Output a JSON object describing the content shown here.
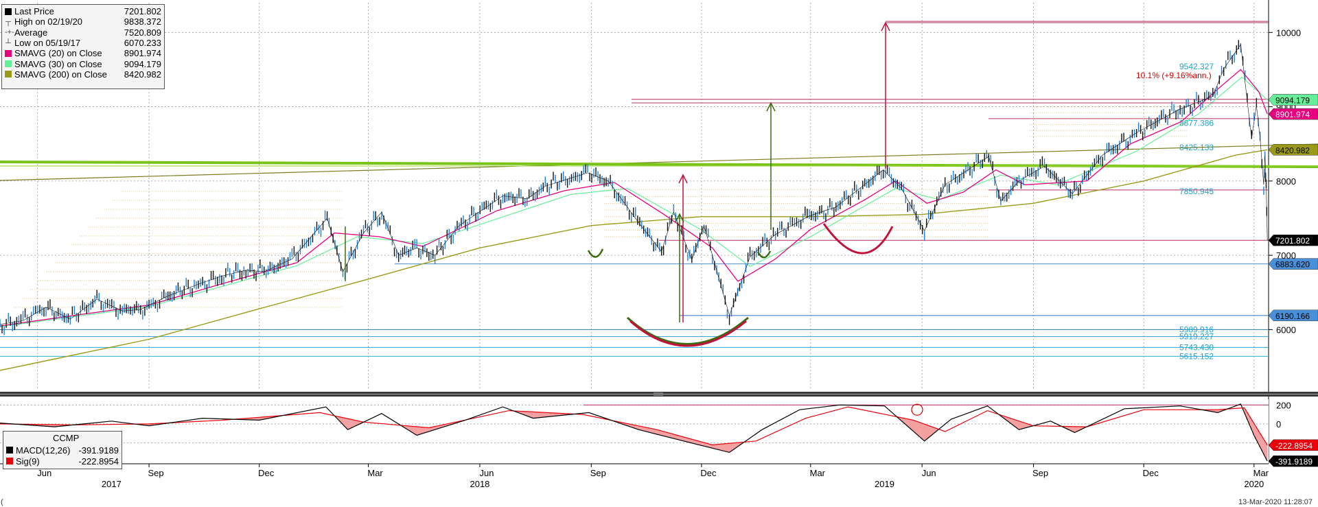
{
  "legend": [
    {
      "label": "Last Price",
      "value": "7201.802",
      "color": "#000000",
      "kind": "box"
    },
    {
      "label": "High on 02/19/20",
      "value": "9838.372",
      "color": "#444444",
      "kind": "high"
    },
    {
      "label": "Average",
      "value": "7520.809",
      "color": "#444444",
      "kind": "avg"
    },
    {
      "label": "Low on 05/19/17",
      "value": "6070.233",
      "color": "#444444",
      "kind": "low"
    },
    {
      "label": "SMAVG (20)  on Close",
      "value": "8901.974",
      "color": "#e6007e",
      "kind": "box"
    },
    {
      "label": "SMAVG (30)  on Close",
      "value": "9094.179",
      "color": "#66ee99",
      "kind": "box"
    },
    {
      "label": "SMAVG (200)  on Close",
      "value": "8420.982",
      "color": "#9a9a1a",
      "kind": "box"
    }
  ],
  "macd_legend": {
    "title": "CCMP",
    "rows": [
      {
        "label": "MACD(12,26)",
        "value": "-391.9189",
        "color": "#000000"
      },
      {
        "label": "Sig(9)",
        "value": "-222.8954",
        "color": "#e8000b"
      }
    ]
  },
  "timestamp": "13-Mar-2020 11:28:07",
  "corner_mark": "(",
  "chart_data": {
    "type": "line",
    "title": "",
    "x_range": [
      "2017-05-01",
      "2020-03-13"
    ],
    "y_range": [
      5200,
      10400
    ],
    "log_scale": false,
    "y_ticks": [
      10000,
      9000,
      8000,
      7000,
      6000
    ],
    "x_ticks_month": [
      {
        "label": "Jun",
        "date": "2017-06-01"
      },
      {
        "label": "Sep",
        "date": "2017-09-01"
      },
      {
        "label": "Dec",
        "date": "2017-12-01"
      },
      {
        "label": "Mar",
        "date": "2018-03-01"
      },
      {
        "label": "Jun",
        "date": "2018-06-01"
      },
      {
        "label": "Sep",
        "date": "2018-09-01"
      },
      {
        "label": "Dec",
        "date": "2018-12-01"
      },
      {
        "label": "Mar",
        "date": "2019-03-01"
      },
      {
        "label": "Jun",
        "date": "2019-06-01"
      },
      {
        "label": "Sep",
        "date": "2019-09-01"
      },
      {
        "label": "Dec",
        "date": "2019-12-01"
      },
      {
        "label": "Mar",
        "date": "2020-03-01"
      }
    ],
    "x_ticks_year": [
      {
        "label": "2017",
        "date": "2017-08-01"
      },
      {
        "label": "2018",
        "date": "2018-06-01"
      },
      {
        "label": "2019",
        "date": "2019-05-01"
      },
      {
        "label": "2020",
        "date": "2020-03-01"
      }
    ],
    "price_series": {
      "name": "Last Price",
      "color": "#111111",
      "points": [
        [
          "2017-05-01",
          6070
        ],
        [
          "2017-05-20",
          6120
        ],
        [
          "2017-06-08",
          6300
        ],
        [
          "2017-06-28",
          6140
        ],
        [
          "2017-07-20",
          6410
        ],
        [
          "2017-08-10",
          6250
        ],
        [
          "2017-08-25",
          6270
        ],
        [
          "2017-09-15",
          6440
        ],
        [
          "2017-10-10",
          6600
        ],
        [
          "2017-10-31",
          6720
        ],
        [
          "2017-11-20",
          6800
        ],
        [
          "2017-12-05",
          6780
        ],
        [
          "2017-12-28",
          6950
        ],
        [
          "2018-01-26",
          7500
        ],
        [
          "2018-02-08",
          6780
        ],
        [
          "2018-02-25",
          7300
        ],
        [
          "2018-03-12",
          7580
        ],
        [
          "2018-03-26",
          7000
        ],
        [
          "2018-04-10",
          7100
        ],
        [
          "2018-04-25",
          7000
        ],
        [
          "2018-05-15",
          7400
        ],
        [
          "2018-06-20",
          7800
        ],
        [
          "2018-07-10",
          7760
        ],
        [
          "2018-07-25",
          7930
        ],
        [
          "2018-08-29",
          8110
        ],
        [
          "2018-09-15",
          8000
        ],
        [
          "2018-10-11",
          7420
        ],
        [
          "2018-10-29",
          7050
        ],
        [
          "2018-11-08",
          7580
        ],
        [
          "2018-11-23",
          6940
        ],
        [
          "2018-12-03",
          7400
        ],
        [
          "2018-12-24",
          6190
        ],
        [
          "2019-01-10",
          6980
        ],
        [
          "2019-01-31",
          7280
        ],
        [
          "2019-02-28",
          7530
        ],
        [
          "2019-03-22",
          7650
        ],
        [
          "2019-04-30",
          8150
        ],
        [
          "2019-05-15",
          7900
        ],
        [
          "2019-06-03",
          7330
        ],
        [
          "2019-06-20",
          7950
        ],
        [
          "2019-07-26",
          8330
        ],
        [
          "2019-08-05",
          7730
        ],
        [
          "2019-08-20",
          8000
        ],
        [
          "2019-09-10",
          8200
        ],
        [
          "2019-10-03",
          7830
        ],
        [
          "2019-10-28",
          8350
        ],
        [
          "2019-11-25",
          8650
        ],
        [
          "2019-12-31",
          8970
        ],
        [
          "2020-01-27",
          9140
        ],
        [
          "2020-02-05",
          9510
        ],
        [
          "2020-02-19",
          9838
        ],
        [
          "2020-02-28",
          8570
        ],
        [
          "2020-03-03",
          9020
        ],
        [
          "2020-03-06",
          8580
        ],
        [
          "2020-03-09",
          7950
        ],
        [
          "2020-03-10",
          8340
        ],
        [
          "2020-03-11",
          7950
        ],
        [
          "2020-03-12",
          7201
        ]
      ]
    },
    "sma20": {
      "name": "SMAVG (20)",
      "color": "#e6007e",
      "points": [
        [
          "2017-05-01",
          6050
        ],
        [
          "2017-07-01",
          6190
        ],
        [
          "2017-09-01",
          6330
        ],
        [
          "2017-11-01",
          6620
        ],
        [
          "2018-01-01",
          6900
        ],
        [
          "2018-02-01",
          7300
        ],
        [
          "2018-03-10",
          7250
        ],
        [
          "2018-04-15",
          7120
        ],
        [
          "2018-06-15",
          7600
        ],
        [
          "2018-08-10",
          7870
        ],
        [
          "2018-09-20",
          7980
        ],
        [
          "2018-10-31",
          7550
        ],
        [
          "2018-12-10",
          7100
        ],
        [
          "2018-12-31",
          6650
        ],
        [
          "2019-01-31",
          6950
        ],
        [
          "2019-03-01",
          7350
        ],
        [
          "2019-04-15",
          7750
        ],
        [
          "2019-05-10",
          8000
        ],
        [
          "2019-06-05",
          7700
        ],
        [
          "2019-07-05",
          7850
        ],
        [
          "2019-08-01",
          8150
        ],
        [
          "2019-08-25",
          7950
        ],
        [
          "2019-10-15",
          8000
        ],
        [
          "2019-11-20",
          8500
        ],
        [
          "2020-01-01",
          8800
        ],
        [
          "2020-02-01",
          9250
        ],
        [
          "2020-02-19",
          9500
        ],
        [
          "2020-03-05",
          9200
        ],
        [
          "2020-03-12",
          8902
        ]
      ]
    },
    "sma30": {
      "name": "SMAVG (30)",
      "color": "#66ee99",
      "points": [
        [
          "2017-05-01",
          6040
        ],
        [
          "2017-09-01",
          6310
        ],
        [
          "2018-01-01",
          6860
        ],
        [
          "2018-02-20",
          7250
        ],
        [
          "2018-04-15",
          7160
        ],
        [
          "2018-08-15",
          7820
        ],
        [
          "2018-10-01",
          7900
        ],
        [
          "2018-11-30",
          7350
        ],
        [
          "2019-01-10",
          6850
        ],
        [
          "2019-03-01",
          7250
        ],
        [
          "2019-05-10",
          7900
        ],
        [
          "2019-06-15",
          7750
        ],
        [
          "2019-08-05",
          8080
        ],
        [
          "2019-09-20",
          7950
        ],
        [
          "2019-11-25",
          8400
        ],
        [
          "2020-01-15",
          8900
        ],
        [
          "2020-02-20",
          9400
        ],
        [
          "2020-03-12",
          9094
        ]
      ]
    },
    "sma200": {
      "name": "SMAVG (200)",
      "color": "#9a9a1a",
      "points": [
        [
          "2017-05-01",
          5450
        ],
        [
          "2017-09-01",
          5870
        ],
        [
          "2017-12-01",
          6280
        ],
        [
          "2018-03-01",
          6680
        ],
        [
          "2018-06-01",
          7100
        ],
        [
          "2018-09-01",
          7400
        ],
        [
          "2018-12-01",
          7520
        ],
        [
          "2019-03-01",
          7520
        ],
        [
          "2019-06-01",
          7550
        ],
        [
          "2019-09-01",
          7700
        ],
        [
          "2019-12-01",
          8000
        ],
        [
          "2020-02-15",
          8350
        ],
        [
          "2020-03-12",
          8421
        ]
      ]
    },
    "right_axis_labels": [
      {
        "value": "9094.179",
        "y": 9094,
        "bg": "#66ee99",
        "fg": "#000000"
      },
      {
        "value": "8901.974",
        "y": 8902,
        "bg": "#e6007e",
        "fg": "#ffffff"
      },
      {
        "value": "8420.982",
        "y": 8421,
        "bg": "#9a9a1a",
        "fg": "#000000"
      },
      {
        "value": "7201.802",
        "y": 7202,
        "bg": "#000000",
        "fg": "#ffffff"
      },
      {
        "value": "6883.620",
        "y": 6884,
        "bg": "#4a90d9",
        "fg": "#000000"
      },
      {
        "value": "6190.166",
        "y": 6190,
        "bg": "#4a90d9",
        "fg": "#000000"
      }
    ],
    "annotations": [
      {
        "text": "9542.327",
        "y": 9542,
        "color": "#1fa3c9"
      },
      {
        "text": "10.1% (+9.16%ann.)",
        "y": 9420,
        "color": "#d00000"
      },
      {
        "text": "8877.386",
        "y": 8780,
        "color": "#1fa3c9"
      },
      {
        "text": "8425.133",
        "y": 8450,
        "color": "#1fa3c9"
      },
      {
        "text": "7850.945",
        "y": 7860,
        "color": "#1fa3c9"
      },
      {
        "text": "5989.916",
        "y": 6000,
        "color": "#1fa3c9"
      },
      {
        "text": "5919.227",
        "y": 5905,
        "color": "#1fa3c9"
      },
      {
        "text": "5743.430",
        "y": 5760,
        "color": "#1fa3c9"
      },
      {
        "text": "5615.152",
        "y": 5640,
        "color": "#1fa3c9"
      }
    ],
    "macd": {
      "y_range": [
        -420,
        260
      ],
      "y_ticks": [
        200,
        0,
        -200
      ],
      "macd_color": "#000000",
      "signal_color": "#e8000b",
      "right_labels": [
        {
          "value": "-222.8954",
          "y": -223,
          "bg": "#e8000b",
          "fg": "#ffffff"
        },
        {
          "value": "-391.9189",
          "y": -392,
          "bg": "#000000",
          "fg": "#ffffff"
        }
      ],
      "macd_points": [
        [
          "2017-05-01",
          10
        ],
        [
          "2017-06-15",
          -30
        ],
        [
          "2017-08-01",
          30
        ],
        [
          "2017-09-01",
          -20
        ],
        [
          "2017-10-15",
          60
        ],
        [
          "2017-12-01",
          40
        ],
        [
          "2018-01-25",
          180
        ],
        [
          "2018-02-12",
          -60
        ],
        [
          "2018-03-12",
          110
        ],
        [
          "2018-04-10",
          -120
        ],
        [
          "2018-05-20",
          40
        ],
        [
          "2018-06-20",
          180
        ],
        [
          "2018-07-15",
          60
        ],
        [
          "2018-08-30",
          120
        ],
        [
          "2018-10-10",
          -60
        ],
        [
          "2018-11-10",
          -160
        ],
        [
          "2018-12-24",
          -300
        ],
        [
          "2019-01-20",
          -60
        ],
        [
          "2019-02-20",
          150
        ],
        [
          "2019-03-25",
          200
        ],
        [
          "2019-05-01",
          190
        ],
        [
          "2019-06-03",
          -180
        ],
        [
          "2019-06-25",
          50
        ],
        [
          "2019-07-25",
          190
        ],
        [
          "2019-08-20",
          -60
        ],
        [
          "2019-09-15",
          30
        ],
        [
          "2019-10-05",
          -90
        ],
        [
          "2019-11-15",
          160
        ],
        [
          "2019-12-31",
          190
        ],
        [
          "2020-01-31",
          120
        ],
        [
          "2020-02-19",
          210
        ],
        [
          "2020-03-01",
          -120
        ],
        [
          "2020-03-12",
          -392
        ]
      ],
      "signal_points": [
        [
          "2017-05-01",
          0
        ],
        [
          "2017-07-01",
          -10
        ],
        [
          "2017-09-01",
          0
        ],
        [
          "2017-11-01",
          40
        ],
        [
          "2018-01-20",
          120
        ],
        [
          "2018-02-25",
          20
        ],
        [
          "2018-04-20",
          -40
        ],
        [
          "2018-06-25",
          140
        ],
        [
          "2018-08-25",
          100
        ],
        [
          "2018-10-25",
          -60
        ],
        [
          "2018-12-10",
          -220
        ],
        [
          "2019-01-15",
          -180
        ],
        [
          "2019-02-25",
          60
        ],
        [
          "2019-04-01",
          180
        ],
        [
          "2019-05-25",
          40
        ],
        [
          "2019-06-20",
          -80
        ],
        [
          "2019-07-25",
          140
        ],
        [
          "2019-09-01",
          -20
        ],
        [
          "2019-10-15",
          -30
        ],
        [
          "2019-12-01",
          150
        ],
        [
          "2020-01-31",
          150
        ],
        [
          "2020-02-22",
          170
        ],
        [
          "2020-03-12",
          -223
        ]
      ]
    }
  }
}
